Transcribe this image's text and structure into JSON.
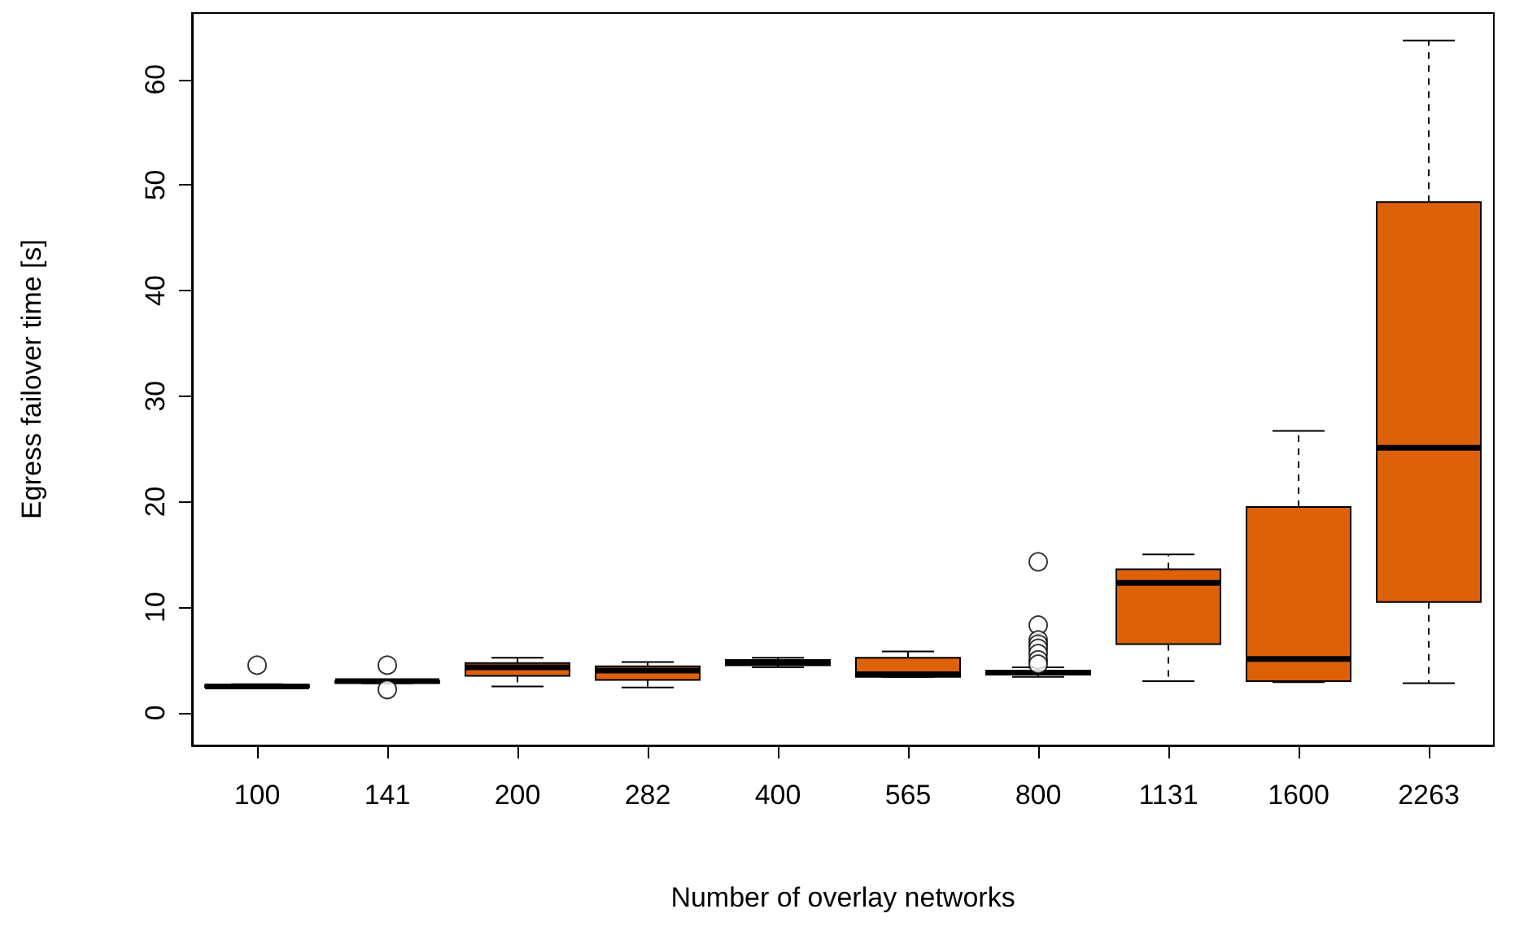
{
  "chart_data": {
    "type": "box",
    "xlabel": "Number of overlay networks",
    "ylabel": "Egress failover time [s]",
    "categories": [
      "100",
      "141",
      "200",
      "282",
      "400",
      "565",
      "800",
      "1131",
      "1600",
      "2263"
    ],
    "color": "#dd6108",
    "line_style": "dashed",
    "grid": false,
    "legend": false,
    "ylim": [
      -3.1,
      66.3
    ],
    "yticks": [
      0,
      10,
      20,
      30,
      40,
      50,
      60
    ],
    "boxes": [
      {
        "low": 2.4,
        "q1": 2.5,
        "median": 2.5,
        "q3": 2.6,
        "high": 2.7,
        "outliers": [
          4.5
        ]
      },
      {
        "low": 2.8,
        "q1": 2.9,
        "median": 3.0,
        "q3": 3.0,
        "high": 3.1,
        "outliers": [
          4.5,
          2.2
        ]
      },
      {
        "low": 2.5,
        "q1": 3.5,
        "median": 4.3,
        "q3": 4.7,
        "high": 5.2
      },
      {
        "low": 2.4,
        "q1": 3.1,
        "median": 4.0,
        "q3": 4.4,
        "high": 4.8
      },
      {
        "low": 4.3,
        "q1": 4.5,
        "median": 4.8,
        "q3": 5.0,
        "high": 5.2
      },
      {
        "low": 3.4,
        "q1": 3.4,
        "median": 3.65,
        "q3": 5.2,
        "high": 5.8
      },
      {
        "low": 3.4,
        "q1": 3.6,
        "median": 3.8,
        "q3": 4.0,
        "high": 4.3,
        "outliers": [
          14.3,
          8.3,
          6.9,
          6.5,
          6.1,
          5.6,
          5.0,
          4.6
        ]
      },
      {
        "low": 3.0,
        "q1": 6.5,
        "median": 12.3,
        "q3": 13.6,
        "high": 15.0
      },
      {
        "low": 2.9,
        "q1": 3.0,
        "median": 5.1,
        "q3": 19.5,
        "high": 26.7
      },
      {
        "low": 2.8,
        "q1": 10.5,
        "median": 25.1,
        "q3": 48.4,
        "high": 63.7
      }
    ]
  }
}
